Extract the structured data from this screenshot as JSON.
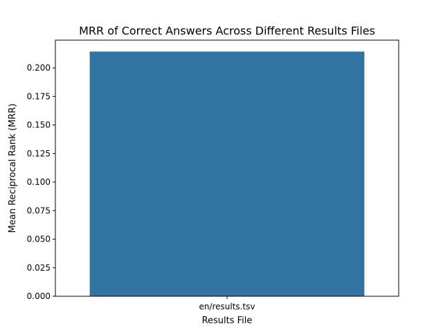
{
  "chart_data": {
    "type": "bar",
    "title": "MRR of Correct Answers Across Different Results Files",
    "xlabel": "Results File",
    "ylabel": "Mean Reciprocal Rank (MRR)",
    "categories": [
      "en/results.tsv"
    ],
    "values": [
      0.2143
    ],
    "ylim": [
      0,
      0.2243
    ],
    "yticks": [
      0.0,
      0.025,
      0.05,
      0.075,
      0.1,
      0.125,
      0.15,
      0.175,
      0.2
    ],
    "ytick_labels": [
      "0.000",
      "0.025",
      "0.050",
      "0.075",
      "0.100",
      "0.125",
      "0.150",
      "0.175",
      "0.200"
    ],
    "bar_color": "#3274a1",
    "grid": false,
    "legend": "none"
  }
}
